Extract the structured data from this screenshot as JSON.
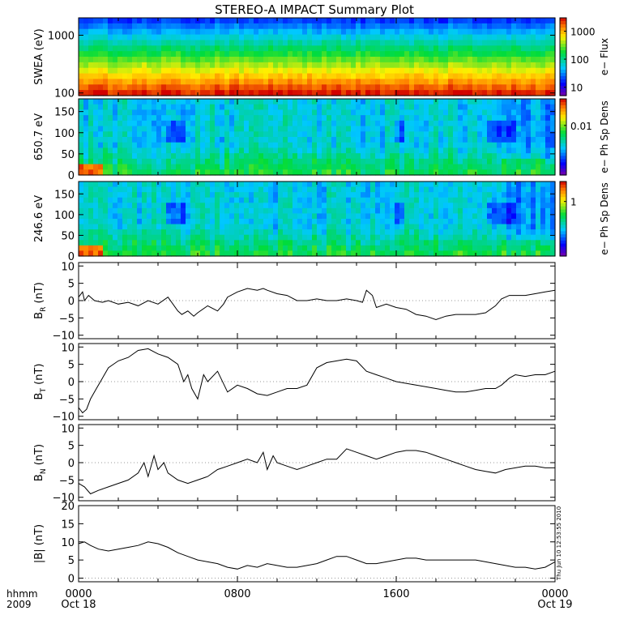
{
  "chart_data": {
    "title": "STEREO-A IMPACT Summary Plot",
    "timestamp": "Thu Jun 10 12:53:55 2010",
    "xaxis": {
      "time_label": "hhmm",
      "year_label": "2009",
      "range_hours": [
        0,
        24
      ],
      "ticks": [
        {
          "h": 0,
          "time": "0000",
          "date": "Oct 18"
        },
        {
          "h": 8,
          "time": "0800",
          "date": ""
        },
        {
          "h": 16,
          "time": "1600",
          "date": ""
        },
        {
          "h": 24,
          "time": "0000",
          "date": "Oct 19"
        }
      ]
    },
    "panels": [
      {
        "type": "heatmap",
        "ylabel": "SWEA (eV)",
        "ylog": true,
        "yrange": [
          90,
          2000
        ],
        "yticks": [
          {
            "v": 100,
            "label": "100"
          },
          {
            "v": 1000,
            "label": "1000"
          }
        ],
        "colorbar": {
          "label": "e− Flux",
          "log": true,
          "range": [
            5,
            3000
          ],
          "ticks": [
            {
              "v": 10,
              "label": "10"
            },
            {
              "v": 100,
              "label": "100"
            },
            {
              "v": 1000,
              "label": "1000"
            }
          ]
        }
      },
      {
        "type": "heatmap",
        "ylabel": "650.7 eV",
        "yrange": [
          0,
          180
        ],
        "yticks": [
          {
            "v": 0,
            "label": "0"
          },
          {
            "v": 50,
            "label": "50"
          },
          {
            "v": 100,
            "label": "100"
          },
          {
            "v": 150,
            "label": "150"
          }
        ],
        "colorbar": {
          "label": "e− Ph Sp Dens",
          "log": true,
          "range": [
            0.0005,
            0.05
          ],
          "ticks": [
            {
              "v": 0.01,
              "label": "0.01"
            }
          ]
        }
      },
      {
        "type": "heatmap",
        "ylabel": "246.6 eV",
        "yrange": [
          0,
          180
        ],
        "yticks": [
          {
            "v": 0,
            "label": "0"
          },
          {
            "v": 50,
            "label": "50"
          },
          {
            "v": 100,
            "label": "100"
          },
          {
            "v": 150,
            "label": "150"
          }
        ],
        "colorbar": {
          "label": "e− Ph Sp Dens",
          "log": true,
          "range": [
            0.05,
            3
          ],
          "ticks": [
            {
              "v": 1,
              "label": "1"
            }
          ]
        }
      },
      {
        "type": "line",
        "ylabel": "B",
        "ylabel_sub": "R",
        "ylabel_unit": "(nT)",
        "yrange": [
          -11,
          11
        ],
        "yticks": [
          {
            "v": -10,
            "label": "−10"
          },
          {
            "v": -5,
            "label": "−5"
          },
          {
            "v": 0,
            "label": "0"
          },
          {
            "v": 5,
            "label": "5"
          },
          {
            "v": 10,
            "label": "10"
          }
        ],
        "x": [
          0,
          0.2,
          0.3,
          0.5,
          0.8,
          1.2,
          1.5,
          2.0,
          2.5,
          3.0,
          3.5,
          4.0,
          4.5,
          5.0,
          5.2,
          5.5,
          5.8,
          6.0,
          6.5,
          7.0,
          7.3,
          7.5,
          8.0,
          8.5,
          9.0,
          9.3,
          9.5,
          10.0,
          10.5,
          11.0,
          11.5,
          12.0,
          12.5,
          13.0,
          13.5,
          14.0,
          14.3,
          14.5,
          14.8,
          15.0,
          15.5,
          16.0,
          16.5,
          17.0,
          17.5,
          18.0,
          18.5,
          19.0,
          20.0,
          20.5,
          21.0,
          21.3,
          21.7,
          22.0,
          22.5,
          23.0,
          23.5,
          24.0
        ],
        "y": [
          1,
          2.5,
          0,
          1.5,
          0,
          -0.5,
          0,
          -1,
          -0.5,
          -1.5,
          0,
          -1,
          1,
          -3,
          -4,
          -3,
          -4.5,
          -3.5,
          -1.5,
          -3,
          -1,
          1,
          2.5,
          3.5,
          3,
          3.5,
          3,
          2,
          1.5,
          0,
          0,
          0.5,
          0,
          0,
          0.5,
          0,
          -0.5,
          3,
          1.5,
          -2,
          -1,
          -2,
          -2.5,
          -4,
          -4.5,
          -5.5,
          -4.5,
          -4,
          -4,
          -3.5,
          -1.5,
          0.5,
          1.5,
          1.5,
          1.5,
          2,
          2.5,
          3
        ]
      },
      {
        "type": "line",
        "ylabel": "B",
        "ylabel_sub": "T",
        "ylabel_unit": "(nT)",
        "yrange": [
          -11,
          11
        ],
        "yticks": [
          {
            "v": -10,
            "label": "−10"
          },
          {
            "v": -5,
            "label": "−5"
          },
          {
            "v": 0,
            "label": "0"
          },
          {
            "v": 5,
            "label": "5"
          },
          {
            "v": 10,
            "label": "10"
          }
        ],
        "x": [
          0,
          0.2,
          0.4,
          0.6,
          0.9,
          1.2,
          1.5,
          2.0,
          2.5,
          3.0,
          3.5,
          4.0,
          4.5,
          5.0,
          5.3,
          5.5,
          5.7,
          6.0,
          6.3,
          6.5,
          7.0,
          7.5,
          8.0,
          8.5,
          9.0,
          9.5,
          10.0,
          10.5,
          11.0,
          11.5,
          12.0,
          12.5,
          13.0,
          13.5,
          14.0,
          14.5,
          15.0,
          15.5,
          16.0,
          16.5,
          17.0,
          17.5,
          18.0,
          18.5,
          19.0,
          19.5,
          20.0,
          20.5,
          21.0,
          21.3,
          21.7,
          22.0,
          22.5,
          23.0,
          23.5,
          24.0
        ],
        "y": [
          -7.5,
          -9,
          -8,
          -5,
          -2,
          1,
          4,
          6,
          7,
          9,
          9.5,
          8,
          7,
          5,
          0,
          2,
          -2,
          -5,
          2,
          0,
          3,
          -3,
          -1,
          -2,
          -3.5,
          -4,
          -3,
          -2,
          -2,
          -1,
          4,
          5.5,
          6,
          6.5,
          6,
          3,
          2,
          1,
          0,
          -0.5,
          -1,
          -1.5,
          -2,
          -2.5,
          -3,
          -3,
          -2.5,
          -2,
          -2,
          -1,
          1,
          2,
          1.5,
          2,
          2,
          3
        ]
      },
      {
        "type": "line",
        "ylabel": "B",
        "ylabel_sub": "N",
        "ylabel_unit": "(nT)",
        "yrange": [
          -11,
          11
        ],
        "yticks": [
          {
            "v": -10,
            "label": "−10"
          },
          {
            "v": -5,
            "label": "−5"
          },
          {
            "v": 0,
            "label": "0"
          },
          {
            "v": 5,
            "label": "5"
          },
          {
            "v": 10,
            "label": "10"
          }
        ],
        "x": [
          0,
          0.3,
          0.6,
          1.0,
          1.5,
          2.0,
          2.5,
          3.0,
          3.3,
          3.5,
          3.8,
          4.0,
          4.3,
          4.5,
          5.0,
          5.5,
          6.0,
          6.5,
          7.0,
          7.5,
          8.0,
          8.5,
          9.0,
          9.3,
          9.5,
          9.8,
          10.0,
          10.5,
          11.0,
          11.5,
          12.0,
          12.5,
          13.0,
          13.5,
          14.0,
          14.5,
          15.0,
          15.5,
          16.0,
          16.5,
          17.0,
          17.5,
          18.0,
          18.5,
          19.0,
          19.5,
          20.0,
          20.5,
          21.0,
          21.5,
          22.0,
          22.5,
          23.0,
          23.5,
          24.0
        ],
        "y": [
          -6,
          -7,
          -9,
          -8,
          -7,
          -6,
          -5,
          -3,
          0,
          -4,
          2,
          -2,
          0,
          -3,
          -5,
          -6,
          -5,
          -4,
          -2,
          -1,
          0,
          1,
          0,
          3,
          -2,
          2,
          0,
          -1,
          -2,
          -1,
          0,
          1,
          1,
          4,
          3,
          2,
          1,
          2,
          3,
          3.5,
          3.5,
          3,
          2,
          1,
          0,
          -1,
          -2,
          -2.5,
          -3,
          -2,
          -1.5,
          -1,
          -1,
          -1.5,
          -1.5
        ]
      },
      {
        "type": "line",
        "ylabel": "|B|",
        "ylabel_unit": "(nT)",
        "yrange": [
          -1,
          20
        ],
        "yticks": [
          {
            "v": 0,
            "label": "0"
          },
          {
            "v": 5,
            "label": "5"
          },
          {
            "v": 10,
            "label": "10"
          },
          {
            "v": 15,
            "label": "15"
          },
          {
            "v": 20,
            "label": "20"
          }
        ],
        "x": [
          0,
          0.3,
          0.6,
          1.0,
          1.5,
          2.0,
          2.5,
          3.0,
          3.5,
          4.0,
          4.5,
          5.0,
          5.5,
          6.0,
          6.5,
          7.0,
          7.5,
          8.0,
          8.5,
          9.0,
          9.5,
          10.0,
          10.5,
          11.0,
          11.5,
          12.0,
          12.5,
          13.0,
          13.5,
          14.0,
          14.5,
          15.0,
          15.5,
          16.0,
          16.5,
          17.0,
          17.5,
          18.0,
          18.5,
          19.0,
          19.5,
          20.0,
          20.5,
          21.0,
          21.5,
          22.0,
          22.5,
          23.0,
          23.5,
          24.0
        ],
        "y": [
          9.5,
          10,
          9,
          8,
          7.5,
          8,
          8.5,
          9,
          10,
          9.5,
          8.5,
          7,
          6,
          5,
          4.5,
          4,
          3,
          2.5,
          3.5,
          3,
          4,
          3.5,
          3,
          3,
          3.5,
          4,
          5,
          6,
          6,
          5,
          4,
          4,
          4.5,
          5,
          5.5,
          5.5,
          5,
          5,
          5,
          5,
          5,
          5,
          4.5,
          4,
          3.5,
          3,
          3,
          2.5,
          3,
          4.5
        ]
      }
    ]
  }
}
